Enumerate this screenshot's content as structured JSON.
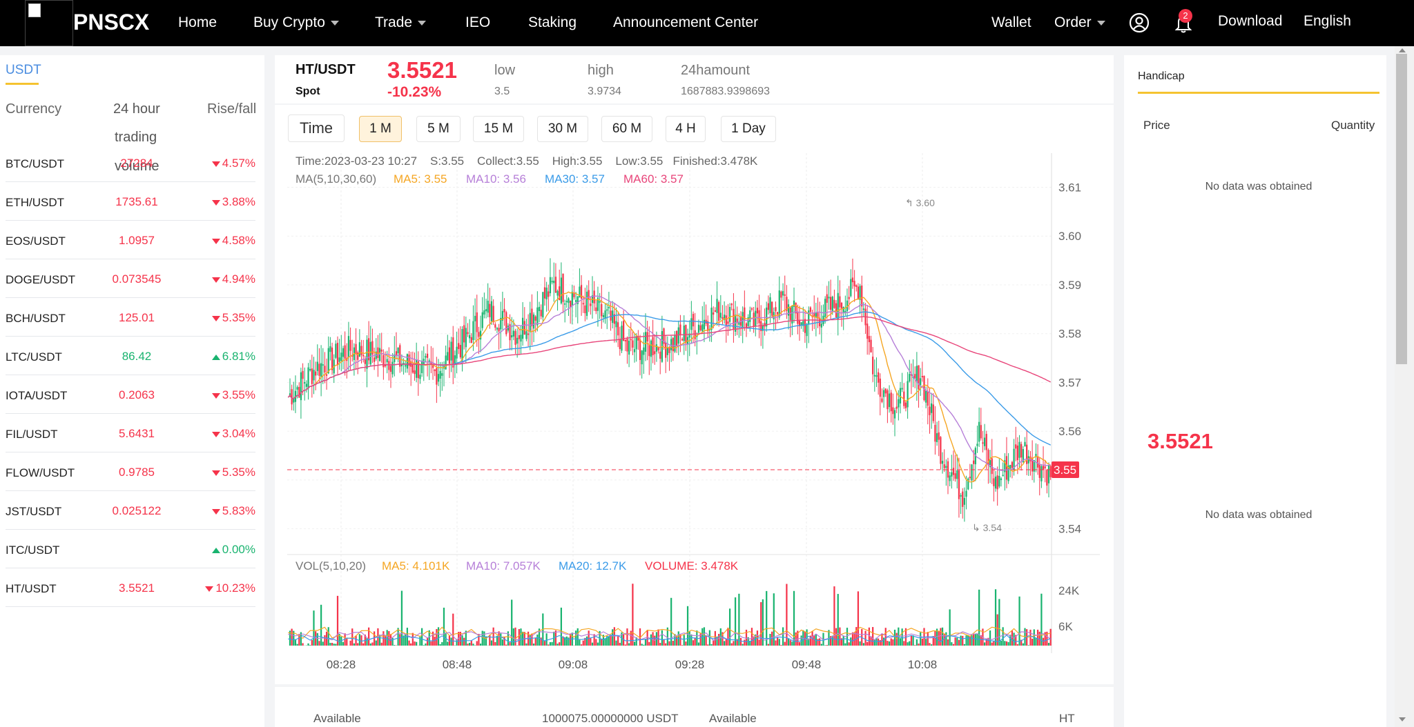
{
  "nav": {
    "brand": "PNSCX",
    "home": "Home",
    "buy_crypto": "Buy Crypto",
    "trade": "Trade",
    "ieo": "IEO",
    "staking": "Staking",
    "announcement": "Announcement Center",
    "wallet": "Wallet",
    "order": "Order",
    "notifications": "2",
    "download": "Download",
    "language": "English"
  },
  "market": {
    "tab": "USDT",
    "col_currency": "Currency",
    "col_volume_1": "24 hour",
    "col_volume_2": "trading",
    "col_volume_3": "volume",
    "col_change": "Rise/fall",
    "rows": [
      {
        "pair": "BTC/USDT",
        "price": "27284",
        "change": "4.57%",
        "dir": "down"
      },
      {
        "pair": "ETH/USDT",
        "price": "1735.61",
        "change": "3.88%",
        "dir": "down"
      },
      {
        "pair": "EOS/USDT",
        "price": "1.0957",
        "change": "4.58%",
        "dir": "down"
      },
      {
        "pair": "DOGE/USDT",
        "price": "0.073545",
        "change": "4.94%",
        "dir": "down"
      },
      {
        "pair": "BCH/USDT",
        "price": "125.01",
        "change": "5.35%",
        "dir": "down"
      },
      {
        "pair": "LTC/USDT",
        "price": "86.42",
        "change": "6.81%",
        "dir": "up"
      },
      {
        "pair": "IOTA/USDT",
        "price": "0.2063",
        "change": "3.55%",
        "dir": "down"
      },
      {
        "pair": "FIL/USDT",
        "price": "5.6431",
        "change": "3.04%",
        "dir": "down"
      },
      {
        "pair": "FLOW/USDT",
        "price": "0.9785",
        "change": "5.35%",
        "dir": "down"
      },
      {
        "pair": "JST/USDT",
        "price": "0.025122",
        "change": "5.83%",
        "dir": "down"
      },
      {
        "pair": "ITC/USDT",
        "price": "",
        "change": "0.00%",
        "dir": "up"
      },
      {
        "pair": "HT/USDT",
        "price": "3.5521",
        "change": "10.23%",
        "dir": "down"
      }
    ]
  },
  "ticker": {
    "pair": "HT/USDT",
    "type": "Spot",
    "price": "3.5521",
    "change": "-10.23%",
    "low_label": "low",
    "low": "3.5",
    "high_label": "high",
    "high": "3.9734",
    "amount_label": "24hamount",
    "amount": "1687883.9398693"
  },
  "timeframes": {
    "time": "Time",
    "items": [
      "1 M",
      "5 M",
      "15 M",
      "30 M",
      "60 M",
      "4 H",
      "1 Day"
    ],
    "active": "1 M"
  },
  "chart": {
    "info_line": "Time:2023-03-23 10:27    S:3.55    Collect:3.55    High:3.55    Low:3.55   Finished:3.478K",
    "ma_label": "MA(5,10,30,60)",
    "ma5": "MA5: 3.55",
    "ma10": "MA10: 3.56",
    "ma30": "MA30: 3.57",
    "ma60": "MA60: 3.57",
    "vol_label": "VOL(5,10,20)",
    "vma5": "MA5: 4.101K",
    "vma10": "MA10: 7.057K",
    "vma20": "MA20: 12.7K",
    "volume": "VOLUME: 3.478K",
    "price_ticks": [
      "3.61",
      "3.60",
      "3.59",
      "3.58",
      "3.57",
      "3.56",
      "3.54"
    ],
    "vol_ticks": [
      "24K",
      "6K"
    ],
    "time_ticks": [
      "08:28",
      "08:48",
      "09:08",
      "09:28",
      "09:48",
      "10:08"
    ],
    "high_mark": "3.60",
    "low_mark": "3.54",
    "last_tag": "3.55",
    "colors": {
      "up": "#19b36f",
      "down": "#f5334a",
      "ma5": "#f5a623",
      "ma10": "#b67fd8",
      "ma30": "#3a9be8",
      "ma60": "#e8457a"
    }
  },
  "bottom": {
    "available_left": "Available",
    "balance_left": "1000075.00000000  USDT",
    "available_right": "Available",
    "currency_right": "HT"
  },
  "handicap": {
    "title": "Handicap",
    "price_label": "Price",
    "quantity_label": "Quantity",
    "no_data_top": "No data was obtained",
    "mid_price": "3.5521",
    "no_data_bottom": "No data was obtained"
  }
}
